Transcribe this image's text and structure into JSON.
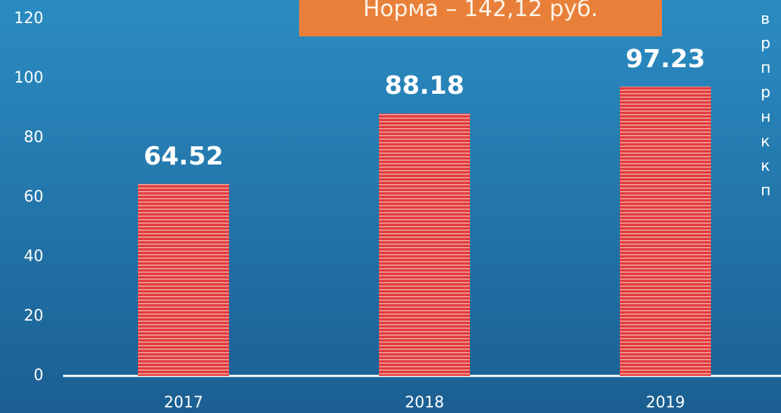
{
  "chart_data": {
    "type": "bar",
    "annotation": "Норма – 142,12 руб.",
    "side_text": [
      "в",
      "р",
      "п",
      "р",
      "н",
      "к",
      "к",
      "п"
    ],
    "categories": [
      "2017",
      "2018",
      "2019"
    ],
    "values": [
      64.52,
      88.18,
      97.23
    ],
    "color": "#e23a3a",
    "ylim": [
      0,
      120
    ],
    "yticks": [
      0,
      20,
      40,
      60,
      80,
      100,
      120
    ],
    "grid": false
  }
}
